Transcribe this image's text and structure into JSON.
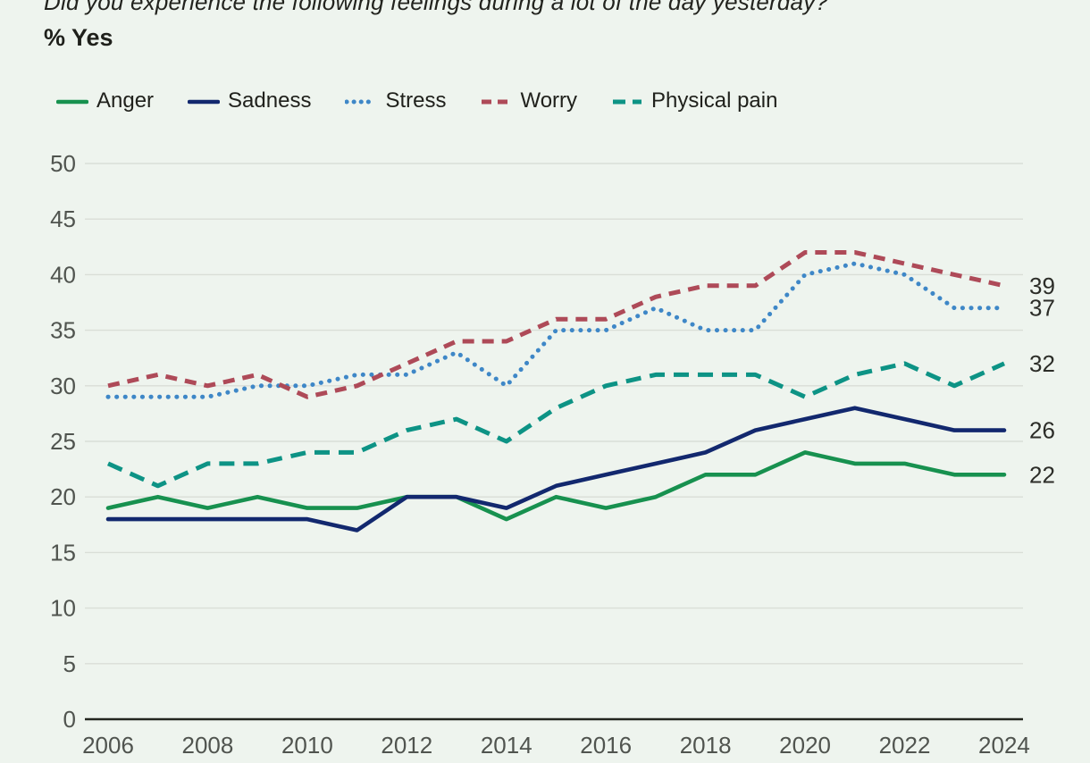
{
  "title": "Did you experience the following feelings during a lot of the day yesterday?",
  "subtitle": "% Yes",
  "chart_data": {
    "type": "line",
    "x": [
      2006,
      2007,
      2008,
      2009,
      2010,
      2011,
      2012,
      2013,
      2014,
      2015,
      2016,
      2017,
      2018,
      2019,
      2020,
      2021,
      2022,
      2023,
      2024
    ],
    "series": [
      {
        "name": "Anger",
        "color": "#17914f",
        "dash": "solid",
        "values": [
          19,
          20,
          19,
          20,
          19,
          19,
          20,
          20,
          18,
          20,
          19,
          20,
          22,
          22,
          24,
          23,
          23,
          22,
          22
        ],
        "end_label": "22"
      },
      {
        "name": "Sadness",
        "color": "#12286e",
        "dash": "solid",
        "values": [
          18,
          18,
          18,
          18,
          18,
          17,
          20,
          20,
          19,
          21,
          22,
          23,
          24,
          26,
          27,
          28,
          27,
          26,
          26
        ],
        "end_label": "26"
      },
      {
        "name": "Stress",
        "color": "#3e87c7",
        "dash": "dotted",
        "values": [
          29,
          29,
          29,
          30,
          30,
          31,
          31,
          33,
          30,
          35,
          35,
          37,
          35,
          35,
          40,
          41,
          40,
          37,
          37
        ],
        "end_label": "37"
      },
      {
        "name": "Worry",
        "color": "#ae4a58",
        "dash": "dashed",
        "values": [
          30,
          31,
          30,
          31,
          29,
          30,
          32,
          34,
          34,
          36,
          36,
          38,
          39,
          39,
          42,
          42,
          41,
          40,
          39
        ],
        "end_label": "39"
      },
      {
        "name": "Physical pain",
        "color": "#0d9385",
        "dash": "long-dashed",
        "values": [
          23,
          21,
          23,
          23,
          24,
          24,
          26,
          27,
          25,
          28,
          30,
          31,
          31,
          31,
          29,
          31,
          32,
          30,
          32
        ],
        "end_label": "32"
      }
    ],
    "title": "Did you experience the following feelings during a lot of the day yesterday?",
    "subtitle": "% Yes",
    "ylim": [
      0,
      50
    ],
    "yticks": [
      0,
      5,
      10,
      15,
      20,
      25,
      30,
      35,
      40,
      45,
      50
    ],
    "xticks": [
      2006,
      2008,
      2010,
      2012,
      2014,
      2016,
      2018,
      2020,
      2022,
      2024
    ],
    "grid": "horizontal",
    "legend_position": "top"
  },
  "colors": {
    "background": "#eef4ee",
    "gridline": "#d9ded7",
    "axis": "#23261f",
    "tick_text": "#50544f",
    "end_label_text": "#2c2d28",
    "legend_text": "#20211c"
  }
}
